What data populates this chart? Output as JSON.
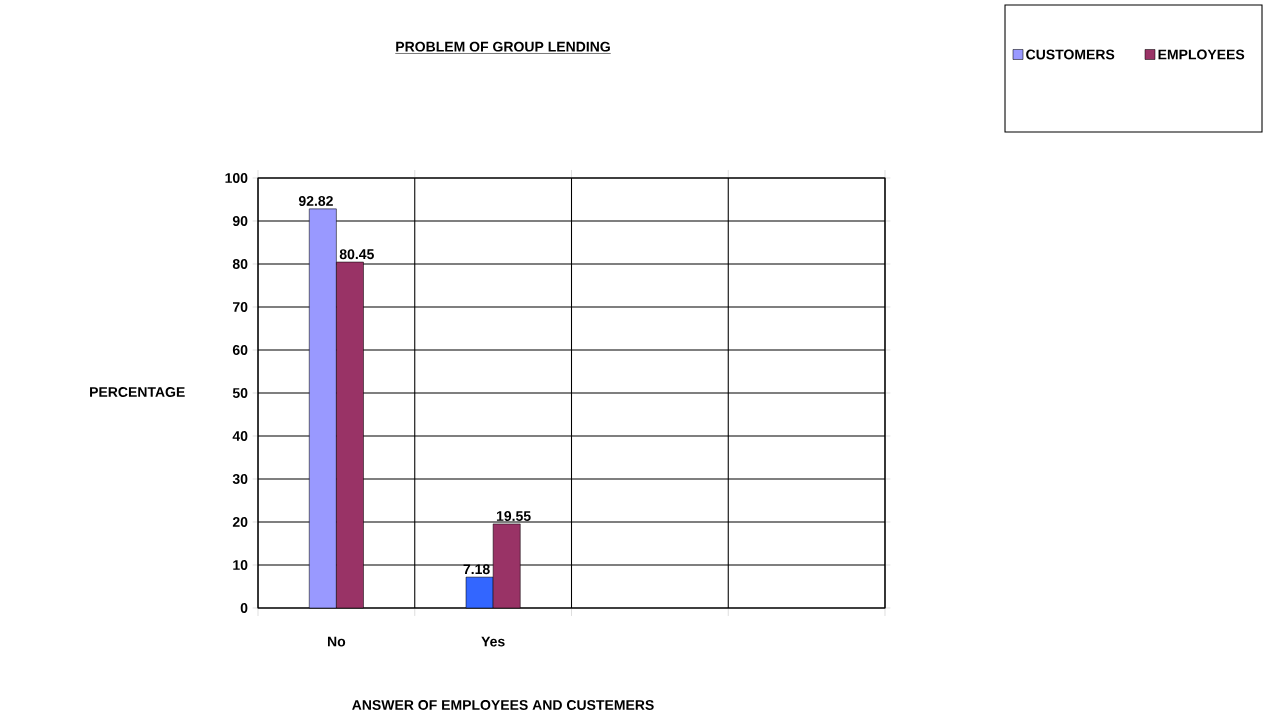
{
  "chart_data": {
    "type": "bar",
    "title": "PROBLEM OF GROUP LENDING",
    "xlabel": "ANSWER OF EMPLOYEES AND CUSTEMERS",
    "ylabel": "PERCENTAGE",
    "categories": [
      "No",
      "Yes",
      null,
      null
    ],
    "series": [
      {
        "name": "CUSTOMERS",
        "color": "#9999ff",
        "colors": [
          "#9999ff",
          "#3366ff",
          "#9999ff",
          "#9999ff"
        ],
        "values": [
          92.82,
          7.18,
          null,
          null
        ]
      },
      {
        "name": "EMPLOYEES",
        "color": "#993366",
        "values": [
          80.45,
          19.55,
          null,
          null
        ]
      }
    ],
    "ylim": [
      0,
      100
    ],
    "yticks": [
      0,
      10,
      20,
      30,
      40,
      50,
      60,
      70,
      80,
      90,
      100
    ],
    "grid": true,
    "legend": "top right",
    "data_labels": true
  }
}
